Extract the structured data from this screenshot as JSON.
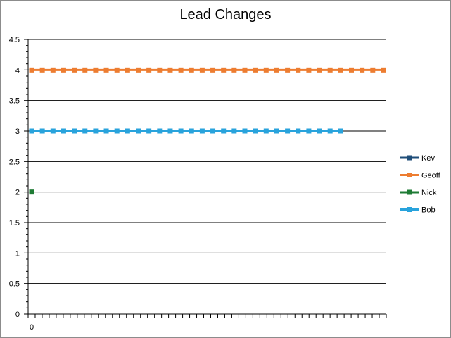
{
  "chart_data": {
    "type": "line",
    "title": "Lead Changes",
    "xlabel": "",
    "ylabel": "",
    "ylim": [
      0,
      4.5
    ],
    "y_ticks": [
      "0",
      "0.5",
      "1",
      "1.5",
      "2",
      "2.5",
      "3",
      "3.5",
      "4",
      "4.5"
    ],
    "x_tick_labels": [
      "0"
    ],
    "x_range": [
      0,
      50
    ],
    "grid": "horizontal",
    "legend_position": "right",
    "series": [
      {
        "name": "Kev",
        "color": "#1f4e79",
        "x": [],
        "values": []
      },
      {
        "name": "Geoff",
        "color": "#ed7d31",
        "x": [
          0,
          1,
          2,
          3,
          4,
          5,
          6,
          7,
          8,
          9,
          10,
          11,
          12,
          13,
          14,
          15,
          16,
          17,
          18,
          19,
          20,
          21,
          22,
          23,
          24,
          25,
          26,
          27,
          28,
          29,
          30,
          31,
          32,
          33
        ],
        "values": [
          4,
          4,
          4,
          4,
          4,
          4,
          4,
          4,
          4,
          4,
          4,
          4,
          4,
          4,
          4,
          4,
          4,
          4,
          4,
          4,
          4,
          4,
          4,
          4,
          4,
          4,
          4,
          4,
          4,
          4,
          4,
          4,
          4,
          4
        ]
      },
      {
        "name": "Nick",
        "color": "#1e7b34",
        "x": [
          0
        ],
        "values": [
          2
        ]
      },
      {
        "name": "Bob",
        "color": "#29a3dc",
        "x": [
          0,
          1,
          2,
          3,
          4,
          5,
          6,
          7,
          8,
          9,
          10,
          11,
          12,
          13,
          14,
          15,
          16,
          17,
          18,
          19,
          20,
          21,
          22,
          23,
          24,
          25,
          26,
          27,
          28,
          29
        ],
        "values": [
          3,
          3,
          3,
          3,
          3,
          3,
          3,
          3,
          3,
          3,
          3,
          3,
          3,
          3,
          3,
          3,
          3,
          3,
          3,
          3,
          3,
          3,
          3,
          3,
          3,
          3,
          3,
          3,
          3,
          3
        ]
      }
    ]
  }
}
